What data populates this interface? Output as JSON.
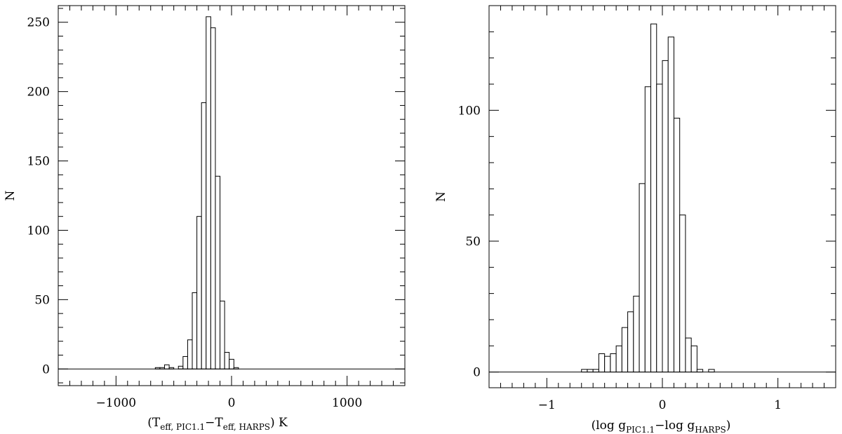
{
  "chart_data": [
    {
      "type": "bar",
      "xlabel": {
        "prefix": "(T",
        "sub1": "eff, PIC1.1",
        "mid": "−T",
        "sub2": "eff, HARPS",
        "suffix": ") K"
      },
      "ylabel": "N",
      "xlim": [
        -1500,
        1500
      ],
      "ylim": [
        -12,
        262
      ],
      "xticks": [
        -1000,
        0,
        1000
      ],
      "xtick_labels": [
        "−1000",
        "0",
        "1000"
      ],
      "yticks": [
        0,
        50,
        100,
        150,
        200,
        250
      ],
      "ytick_labels": [
        "0",
        "50",
        "100",
        "150",
        "200",
        "250"
      ],
      "x_minor_step": 100,
      "y_minor_step": 10,
      "baseline": 0,
      "grid": false,
      "bin_width": 40,
      "bin_starts": [
        -660,
        -620,
        -580,
        -540,
        -500,
        -460,
        -420,
        -380,
        -340,
        -300,
        -260,
        -220,
        -180,
        -140,
        -100,
        -60,
        -20,
        20,
        60,
        100,
        140,
        180,
        220
      ],
      "values": [
        1,
        1,
        3,
        1,
        0,
        2,
        9,
        21,
        55,
        110,
        192,
        254,
        246,
        139,
        49,
        12,
        7,
        1,
        0,
        0,
        0,
        0,
        0
      ]
    },
    {
      "type": "bar",
      "xlabel": {
        "prefix": "(log g",
        "sub1": "PIC1.1",
        "mid": "−log g",
        "sub2": "HARPS",
        "suffix": ")"
      },
      "ylabel": "N",
      "xlim": [
        -1.5,
        1.5
      ],
      "ylim": [
        -6,
        140
      ],
      "xticks": [
        -1,
        0,
        1
      ],
      "xtick_labels": [
        "−1",
        "0",
        "1"
      ],
      "yticks": [
        0,
        50,
        100
      ],
      "ytick_labels": [
        "0",
        "50",
        "100"
      ],
      "x_minor_step": 0.1,
      "y_minor_step": 10,
      "baseline": 0,
      "grid": false,
      "bin_width": 0.05,
      "bin_starts": [
        -0.7,
        -0.65,
        -0.6,
        -0.55,
        -0.5,
        -0.45,
        -0.4,
        -0.35,
        -0.3,
        -0.25,
        -0.2,
        -0.15,
        -0.1,
        -0.05,
        0.0,
        0.05,
        0.1,
        0.15,
        0.2,
        0.25,
        0.3,
        0.35,
        0.4
      ],
      "values": [
        1,
        1,
        1,
        7,
        6,
        7,
        10,
        17,
        23,
        29,
        72,
        109,
        133,
        110,
        119,
        128,
        97,
        60,
        13,
        10,
        1,
        0,
        1
      ]
    }
  ]
}
